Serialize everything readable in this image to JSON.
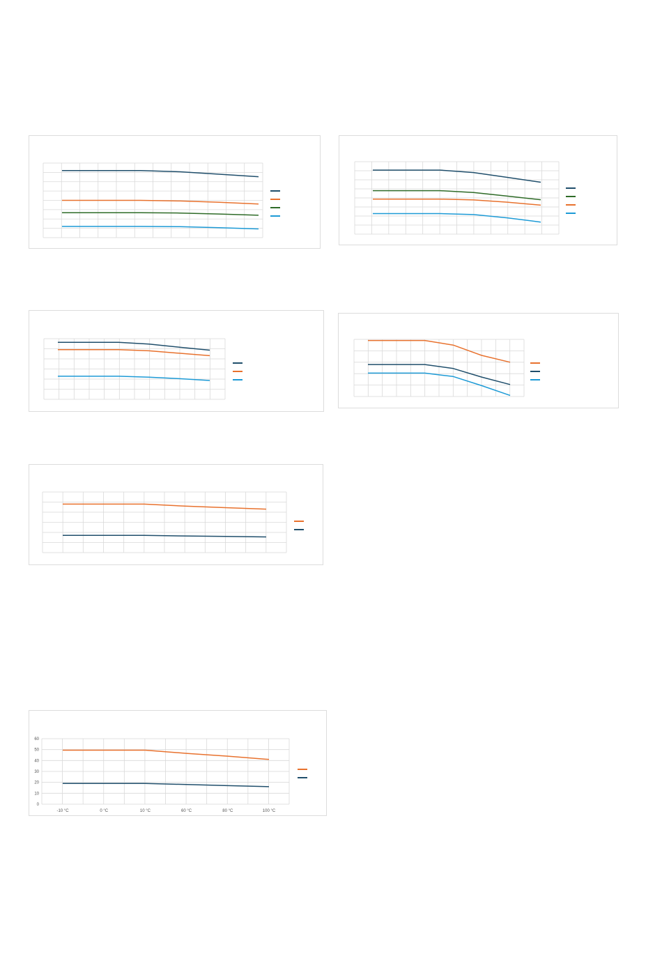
{
  "colors": {
    "dark_blue": "#1f4e6b",
    "orange": "#e8712d",
    "green": "#2e6b27",
    "light_blue": "#1c9ad6",
    "grid": "#d9d9d9"
  },
  "chart_data": [
    {
      "id": "chart-1",
      "type": "line",
      "title": "",
      "xlabel": "",
      "ylabel": "",
      "show_tick_labels": false,
      "grid": true,
      "legend_position": "right",
      "x": [
        0,
        1,
        2,
        3,
        4,
        5
      ],
      "ylim": [
        0,
        60
      ],
      "series": [
        {
          "color": "#1f4e6b",
          "values": [
            54,
            54,
            54,
            53,
            51,
            49
          ]
        },
        {
          "color": "#e8712d",
          "values": [
            30,
            30,
            30,
            29.5,
            28.5,
            27
          ]
        },
        {
          "color": "#2e6b27",
          "values": [
            20,
            20,
            20,
            19.8,
            19,
            18
          ]
        },
        {
          "color": "#1c9ad6",
          "values": [
            9,
            9,
            9,
            8.8,
            8,
            7
          ]
        }
      ]
    },
    {
      "id": "chart-2",
      "type": "line",
      "title": "",
      "xlabel": "",
      "ylabel": "",
      "show_tick_labels": false,
      "grid": true,
      "legend_position": "right",
      "x": [
        0,
        1,
        2,
        3,
        4,
        5
      ],
      "ylim": [
        0,
        60
      ],
      "series": [
        {
          "color": "#1f4e6b",
          "values": [
            53,
            53,
            53,
            51,
            47,
            43
          ]
        },
        {
          "color": "#2e6b27",
          "values": [
            36,
            36,
            36,
            34.5,
            31.5,
            28.5
          ]
        },
        {
          "color": "#e8712d",
          "values": [
            29,
            29,
            29,
            28.3,
            26.5,
            24
          ]
        },
        {
          "color": "#1c9ad6",
          "values": [
            17,
            17,
            17,
            16.2,
            13.5,
            10
          ]
        }
      ]
    },
    {
      "id": "chart-3",
      "type": "line",
      "title": "",
      "xlabel": "",
      "ylabel": "",
      "show_tick_labels": false,
      "grid": true,
      "legend_position": "right",
      "x": [
        0,
        1,
        2,
        3,
        4,
        5
      ],
      "ylim": [
        0,
        50
      ],
      "series": [
        {
          "color": "#1f4e6b",
          "values": [
            47,
            47,
            47,
            45.5,
            43,
            40.5
          ]
        },
        {
          "color": "#e8712d",
          "values": [
            41,
            41,
            41,
            40,
            38,
            36
          ]
        },
        {
          "color": "#1c9ad6",
          "values": [
            19,
            19,
            19,
            18.3,
            17,
            15.5
          ]
        }
      ]
    },
    {
      "id": "chart-4",
      "type": "line",
      "title": "",
      "xlabel": "",
      "ylabel": "",
      "show_tick_labels": false,
      "grid": true,
      "legend_position": "right",
      "x": [
        0,
        1,
        2,
        3,
        4,
        5
      ],
      "ylim": [
        0,
        50
      ],
      "series": [
        {
          "color": "#e8712d",
          "values": [
            49,
            49,
            49,
            45,
            36,
            30
          ]
        },
        {
          "color": "#1f4e6b",
          "values": [
            28,
            28,
            28,
            24.5,
            17,
            10.5
          ]
        },
        {
          "color": "#1c9ad6",
          "values": [
            20.5,
            20.5,
            20.5,
            17.5,
            9.5,
            1
          ]
        }
      ]
    },
    {
      "id": "chart-5",
      "type": "line",
      "title": "",
      "xlabel": "",
      "ylabel": "",
      "show_tick_labels": false,
      "grid": true,
      "legend_position": "right",
      "x": [
        0,
        1,
        2,
        3,
        4,
        5
      ],
      "ylim": [
        0,
        60
      ],
      "series": [
        {
          "color": "#e8712d",
          "values": [
            48,
            48,
            48,
            46,
            44.5,
            43
          ]
        },
        {
          "color": "#1f4e6b",
          "values": [
            17,
            17,
            17,
            16.5,
            16,
            15.5
          ]
        }
      ]
    },
    {
      "id": "chart-6",
      "type": "line",
      "title": "",
      "xlabel": "",
      "ylabel": "",
      "show_tick_labels": true,
      "grid": true,
      "legend_position": "right",
      "categories": [
        "-10 °C",
        "0 °C",
        "10 °C",
        "60 °C",
        "80 °C",
        "100 °C"
      ],
      "y_ticks": [
        "0",
        "10",
        "20",
        "30",
        "40",
        "50",
        "60"
      ],
      "ylim": [
        0,
        60
      ],
      "series": [
        {
          "color": "#e8712d",
          "values": [
            49.5,
            49.5,
            49.5,
            46.5,
            44,
            41
          ]
        },
        {
          "color": "#1f4e6b",
          "values": [
            19,
            19,
            19,
            18,
            17,
            16
          ]
        }
      ]
    }
  ]
}
